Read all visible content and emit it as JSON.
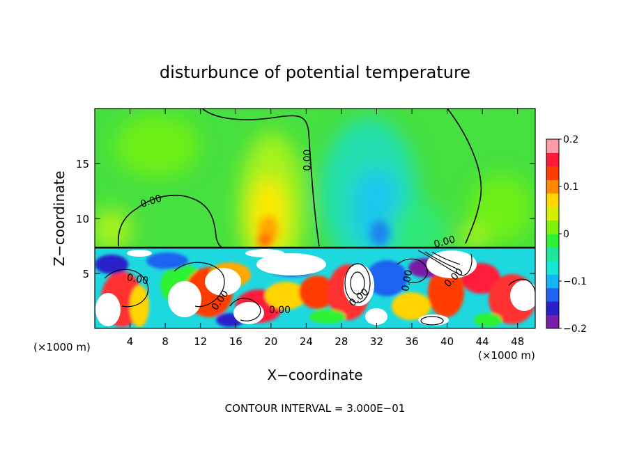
{
  "chart_data": {
    "type": "heatmap",
    "title": "disturbunce of potential temperature",
    "xlabel": "X−coordinate",
    "ylabel": "Z−coordinate",
    "x_unit": "(×1000 m)",
    "x_unit_right": "(×1000 m)",
    "xlim": [
      0,
      50
    ],
    "ylim": [
      0,
      20
    ],
    "x_ticks": [
      4,
      8,
      12,
      16,
      20,
      24,
      28,
      32,
      36,
      40,
      44,
      48
    ],
    "y_ticks": [
      5,
      10,
      15
    ],
    "footer": "CONTOUR INTERVAL = 3.000E−01",
    "contour_labels": [
      {
        "text": "0.00",
        "x": 6.5,
        "y": 11.3,
        "rotate": -18
      },
      {
        "text": "0.00",
        "x": 24.5,
        "y": 15.3,
        "rotate": -90
      },
      {
        "text": "0.00",
        "x": 4.8,
        "y": 4.2,
        "rotate": 10
      },
      {
        "text": "0.00",
        "x": 14.5,
        "y": 2.4,
        "rotate": -55
      },
      {
        "text": "0.00",
        "x": 21.0,
        "y": 1.4,
        "rotate": 0
      },
      {
        "text": "0.00",
        "x": 35.8,
        "y": 4.3,
        "rotate": -80
      },
      {
        "text": "0.00",
        "x": 30.2,
        "y": 2.6,
        "rotate": -40
      },
      {
        "text": "0.00",
        "x": 39.8,
        "y": 7.6,
        "rotate": -15
      },
      {
        "text": "0.00",
        "x": 41.0,
        "y": 4.4,
        "rotate": -45
      }
    ],
    "colorbar": {
      "min": -0.2,
      "max": 0.2,
      "tick_labels": [
        "0.2",
        "0.1",
        "0",
        "−0.1",
        "−0.2"
      ],
      "tick_values": [
        0.2,
        0.1,
        0,
        -0.1,
        -0.2
      ],
      "colors": [
        "#7a1fa8",
        "#2b20c8",
        "#1e64f0",
        "#15b4f5",
        "#13e8d8",
        "#1de89a",
        "#2ff232",
        "#7af20a",
        "#d2ee00",
        "#ffd400",
        "#ff8a00",
        "#ff3c00",
        "#ff1a3a",
        "#ff9aa8"
      ]
    }
  }
}
